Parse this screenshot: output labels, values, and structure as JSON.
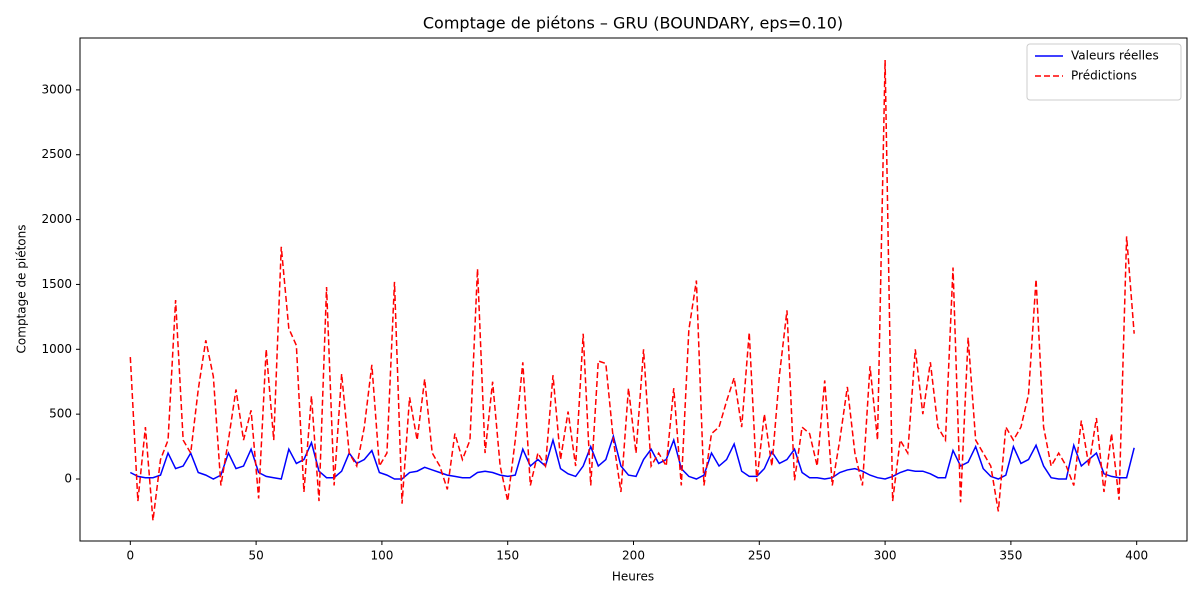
{
  "chart_data": {
    "type": "line",
    "title": "Comptage de piétons – GRU (BOUNDARY, eps=0.10)",
    "x_label": "Heures",
    "y_label": "Comptage de piétons",
    "x": [
      0,
      3,
      6,
      9,
      12,
      15,
      18,
      21,
      24,
      27,
      30,
      33,
      36,
      39,
      42,
      45,
      48,
      51,
      54,
      57,
      60,
      63,
      66,
      69,
      72,
      75,
      78,
      81,
      84,
      87,
      90,
      93,
      96,
      99,
      102,
      105,
      108,
      111,
      114,
      117,
      120,
      123,
      126,
      129,
      132,
      135,
      138,
      141,
      144,
      147,
      150,
      153,
      156,
      159,
      162,
      165,
      168,
      171,
      174,
      177,
      180,
      183,
      186,
      189,
      192,
      195,
      198,
      201,
      204,
      207,
      210,
      213,
      216,
      219,
      222,
      225,
      228,
      231,
      234,
      237,
      240,
      243,
      246,
      249,
      252,
      255,
      258,
      261,
      264,
      267,
      270,
      273,
      276,
      279,
      282,
      285,
      288,
      291,
      294,
      297,
      300,
      303,
      306,
      309,
      312,
      315,
      318,
      321,
      324,
      327,
      330,
      333,
      336,
      339,
      342,
      345,
      348,
      351,
      354,
      357,
      360,
      363,
      366,
      369,
      372,
      375,
      378,
      381,
      384,
      387,
      390,
      393,
      396,
      399
    ],
    "series": [
      {
        "name": "Valeurs réelles",
        "color": "#0000ff",
        "linestyle": "solid",
        "values": [
          50,
          20,
          10,
          10,
          30,
          200,
          80,
          100,
          200,
          50,
          30,
          0,
          30,
          200,
          80,
          100,
          230,
          50,
          20,
          10,
          0,
          230,
          120,
          150,
          280,
          60,
          10,
          10,
          60,
          200,
          120,
          150,
          220,
          50,
          30,
          0,
          0,
          50,
          60,
          90,
          70,
          50,
          30,
          20,
          10,
          10,
          50,
          60,
          50,
          30,
          20,
          30,
          230,
          100,
          150,
          100,
          300,
          80,
          40,
          20,
          100,
          250,
          100,
          150,
          330,
          100,
          30,
          20,
          150,
          230,
          120,
          150,
          300,
          80,
          20,
          0,
          30,
          200,
          100,
          150,
          270,
          60,
          20,
          20,
          80,
          210,
          120,
          150,
          230,
          50,
          10,
          10,
          0,
          10,
          50,
          70,
          80,
          60,
          30,
          10,
          0,
          20,
          50,
          70,
          60,
          60,
          40,
          10,
          10,
          220,
          100,
          130,
          250,
          80,
          20,
          0,
          30,
          250,
          120,
          150,
          260,
          100,
          10,
          0,
          0,
          260,
          100,
          150,
          200,
          40,
          20,
          10,
          10,
          240
        ]
      },
      {
        "name": "Prédictions",
        "color": "#ff0000",
        "linestyle": "dashed",
        "values": [
          940,
          -170,
          400,
          -320,
          150,
          300,
          1380,
          300,
          200,
          690,
          1070,
          790,
          -50,
          300,
          690,
          300,
          530,
          -150,
          1000,
          300,
          1790,
          1160,
          1030,
          -100,
          640,
          -170,
          1480,
          -50,
          810,
          200,
          100,
          400,
          880,
          100,
          200,
          1520,
          -190,
          630,
          300,
          770,
          200,
          100,
          -80,
          350,
          150,
          300,
          1620,
          200,
          750,
          100,
          -170,
          300,
          900,
          -50,
          200,
          100,
          800,
          150,
          520,
          100,
          1120,
          -50,
          910,
          890,
          300,
          -100,
          700,
          200,
          1000,
          100,
          200,
          100,
          700,
          -50,
          1150,
          1530,
          -50,
          350,
          400,
          600,
          780,
          400,
          1130,
          -20,
          500,
          100,
          800,
          1300,
          -10,
          400,
          350,
          100,
          760,
          -50,
          300,
          710,
          200,
          -50,
          870,
          300,
          3230,
          -170,
          300,
          200,
          1000,
          500,
          900,
          400,
          300,
          1630,
          -180,
          1090,
          300,
          200,
          100,
          -250,
          400,
          300,
          400,
          650,
          1540,
          400,
          100,
          200,
          100,
          -50,
          450,
          100,
          470,
          -100,
          350,
          -160,
          1870,
          1120
        ]
      }
    ],
    "xlim": [
      -20,
      420
    ],
    "ylim": [
      -478,
      3400
    ],
    "xticks": [
      0,
      50,
      100,
      150,
      200,
      250,
      300,
      350,
      400
    ],
    "yticks": [
      0,
      500,
      1000,
      1500,
      2000,
      2500,
      3000
    ],
    "grid": false,
    "legend": "upper right"
  }
}
